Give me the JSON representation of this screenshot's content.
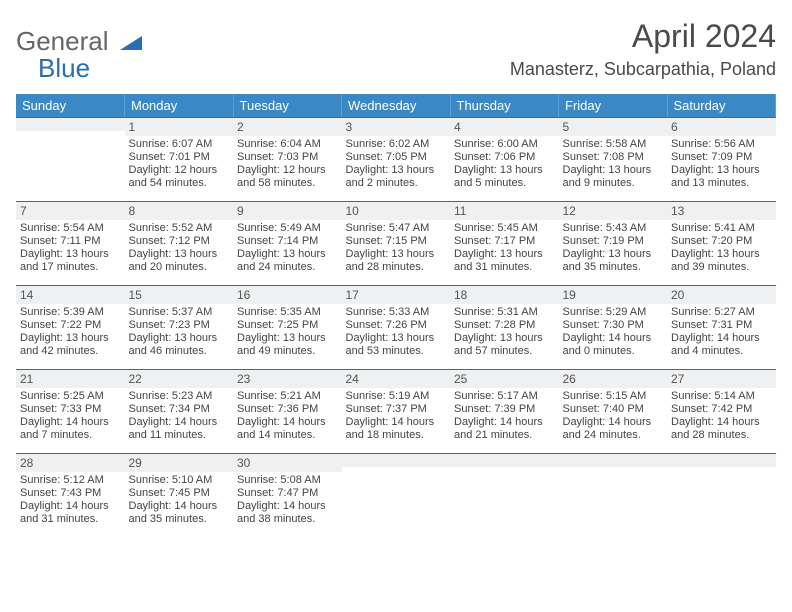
{
  "brand": {
    "top": "General",
    "bottom": "Blue",
    "icon_color": "#2a6db3"
  },
  "title": "April 2024",
  "location": "Manasterz, Subcarpathia, Poland",
  "colors": {
    "header_bg": "#3b88c7",
    "header_text": "#ffffff",
    "rule": "#2a6db3",
    "daybar_bg": "#eef0f1"
  },
  "day_headers": [
    "Sunday",
    "Monday",
    "Tuesday",
    "Wednesday",
    "Thursday",
    "Friday",
    "Saturday"
  ],
  "weeks": [
    [
      {
        "n": "",
        "sr": "",
        "ss": "",
        "dl": ""
      },
      {
        "n": "1",
        "sr": "Sunrise: 6:07 AM",
        "ss": "Sunset: 7:01 PM",
        "dl": "Daylight: 12 hours and 54 minutes."
      },
      {
        "n": "2",
        "sr": "Sunrise: 6:04 AM",
        "ss": "Sunset: 7:03 PM",
        "dl": "Daylight: 12 hours and 58 minutes."
      },
      {
        "n": "3",
        "sr": "Sunrise: 6:02 AM",
        "ss": "Sunset: 7:05 PM",
        "dl": "Daylight: 13 hours and 2 minutes."
      },
      {
        "n": "4",
        "sr": "Sunrise: 6:00 AM",
        "ss": "Sunset: 7:06 PM",
        "dl": "Daylight: 13 hours and 5 minutes."
      },
      {
        "n": "5",
        "sr": "Sunrise: 5:58 AM",
        "ss": "Sunset: 7:08 PM",
        "dl": "Daylight: 13 hours and 9 minutes."
      },
      {
        "n": "6",
        "sr": "Sunrise: 5:56 AM",
        "ss": "Sunset: 7:09 PM",
        "dl": "Daylight: 13 hours and 13 minutes."
      }
    ],
    [
      {
        "n": "7",
        "sr": "Sunrise: 5:54 AM",
        "ss": "Sunset: 7:11 PM",
        "dl": "Daylight: 13 hours and 17 minutes."
      },
      {
        "n": "8",
        "sr": "Sunrise: 5:52 AM",
        "ss": "Sunset: 7:12 PM",
        "dl": "Daylight: 13 hours and 20 minutes."
      },
      {
        "n": "9",
        "sr": "Sunrise: 5:49 AM",
        "ss": "Sunset: 7:14 PM",
        "dl": "Daylight: 13 hours and 24 minutes."
      },
      {
        "n": "10",
        "sr": "Sunrise: 5:47 AM",
        "ss": "Sunset: 7:15 PM",
        "dl": "Daylight: 13 hours and 28 minutes."
      },
      {
        "n": "11",
        "sr": "Sunrise: 5:45 AM",
        "ss": "Sunset: 7:17 PM",
        "dl": "Daylight: 13 hours and 31 minutes."
      },
      {
        "n": "12",
        "sr": "Sunrise: 5:43 AM",
        "ss": "Sunset: 7:19 PM",
        "dl": "Daylight: 13 hours and 35 minutes."
      },
      {
        "n": "13",
        "sr": "Sunrise: 5:41 AM",
        "ss": "Sunset: 7:20 PM",
        "dl": "Daylight: 13 hours and 39 minutes."
      }
    ],
    [
      {
        "n": "14",
        "sr": "Sunrise: 5:39 AM",
        "ss": "Sunset: 7:22 PM",
        "dl": "Daylight: 13 hours and 42 minutes."
      },
      {
        "n": "15",
        "sr": "Sunrise: 5:37 AM",
        "ss": "Sunset: 7:23 PM",
        "dl": "Daylight: 13 hours and 46 minutes."
      },
      {
        "n": "16",
        "sr": "Sunrise: 5:35 AM",
        "ss": "Sunset: 7:25 PM",
        "dl": "Daylight: 13 hours and 49 minutes."
      },
      {
        "n": "17",
        "sr": "Sunrise: 5:33 AM",
        "ss": "Sunset: 7:26 PM",
        "dl": "Daylight: 13 hours and 53 minutes."
      },
      {
        "n": "18",
        "sr": "Sunrise: 5:31 AM",
        "ss": "Sunset: 7:28 PM",
        "dl": "Daylight: 13 hours and 57 minutes."
      },
      {
        "n": "19",
        "sr": "Sunrise: 5:29 AM",
        "ss": "Sunset: 7:30 PM",
        "dl": "Daylight: 14 hours and 0 minutes."
      },
      {
        "n": "20",
        "sr": "Sunrise: 5:27 AM",
        "ss": "Sunset: 7:31 PM",
        "dl": "Daylight: 14 hours and 4 minutes."
      }
    ],
    [
      {
        "n": "21",
        "sr": "Sunrise: 5:25 AM",
        "ss": "Sunset: 7:33 PM",
        "dl": "Daylight: 14 hours and 7 minutes."
      },
      {
        "n": "22",
        "sr": "Sunrise: 5:23 AM",
        "ss": "Sunset: 7:34 PM",
        "dl": "Daylight: 14 hours and 11 minutes."
      },
      {
        "n": "23",
        "sr": "Sunrise: 5:21 AM",
        "ss": "Sunset: 7:36 PM",
        "dl": "Daylight: 14 hours and 14 minutes."
      },
      {
        "n": "24",
        "sr": "Sunrise: 5:19 AM",
        "ss": "Sunset: 7:37 PM",
        "dl": "Daylight: 14 hours and 18 minutes."
      },
      {
        "n": "25",
        "sr": "Sunrise: 5:17 AM",
        "ss": "Sunset: 7:39 PM",
        "dl": "Daylight: 14 hours and 21 minutes."
      },
      {
        "n": "26",
        "sr": "Sunrise: 5:15 AM",
        "ss": "Sunset: 7:40 PM",
        "dl": "Daylight: 14 hours and 24 minutes."
      },
      {
        "n": "27",
        "sr": "Sunrise: 5:14 AM",
        "ss": "Sunset: 7:42 PM",
        "dl": "Daylight: 14 hours and 28 minutes."
      }
    ],
    [
      {
        "n": "28",
        "sr": "Sunrise: 5:12 AM",
        "ss": "Sunset: 7:43 PM",
        "dl": "Daylight: 14 hours and 31 minutes."
      },
      {
        "n": "29",
        "sr": "Sunrise: 5:10 AM",
        "ss": "Sunset: 7:45 PM",
        "dl": "Daylight: 14 hours and 35 minutes."
      },
      {
        "n": "30",
        "sr": "Sunrise: 5:08 AM",
        "ss": "Sunset: 7:47 PM",
        "dl": "Daylight: 14 hours and 38 minutes."
      },
      {
        "n": "",
        "sr": "",
        "ss": "",
        "dl": ""
      },
      {
        "n": "",
        "sr": "",
        "ss": "",
        "dl": ""
      },
      {
        "n": "",
        "sr": "",
        "ss": "",
        "dl": ""
      },
      {
        "n": "",
        "sr": "",
        "ss": "",
        "dl": ""
      }
    ]
  ]
}
